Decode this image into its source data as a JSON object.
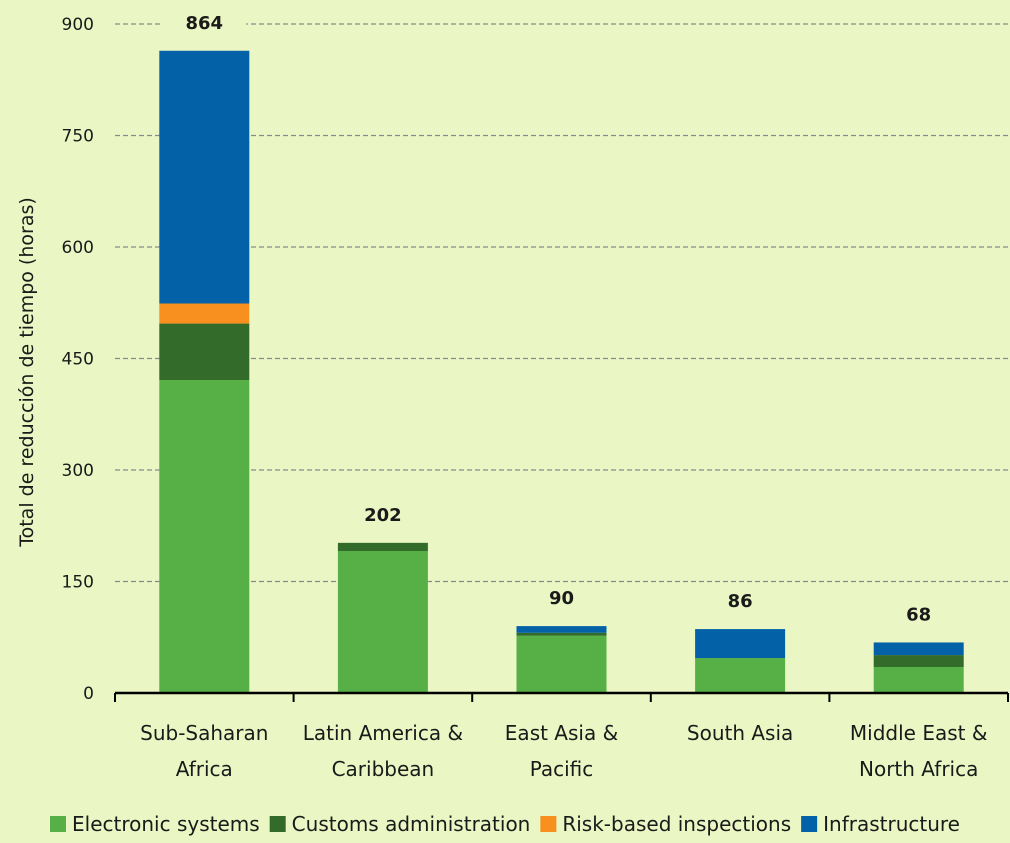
{
  "chart_data": {
    "type": "bar",
    "stacked": true,
    "title": "",
    "xlabel": "",
    "ylabel": "Total de reducción de tiempo (horas)",
    "ylim": [
      0,
      900
    ],
    "yticks": [
      0,
      150,
      300,
      450,
      600,
      750,
      900
    ],
    "grid": "horizontal-dashed",
    "legend_position": "bottom",
    "categories": [
      [
        "Sub-Saharan",
        "Africa"
      ],
      [
        "Latin America &",
        "Caribbean"
      ],
      [
        "East Asia &",
        "Pacific"
      ],
      [
        "South Asia"
      ],
      [
        "Middle East &",
        "North Africa"
      ]
    ],
    "totals": [
      864,
      202,
      90,
      86,
      68
    ],
    "series": [
      {
        "name": "Electronic systems",
        "color": "#57b045",
        "values": [
          421,
          191,
          77,
          47,
          35
        ]
      },
      {
        "name": "Customs administration",
        "color": "#326b2a",
        "values": [
          76,
          11,
          4,
          0,
          16
        ]
      },
      {
        "name": "Risk-based inspections",
        "color": "#f7901e",
        "values": [
          27,
          0,
          0,
          0,
          0
        ]
      },
      {
        "name": "Infrastructure",
        "color": "#0361a8",
        "values": [
          340,
          0,
          9,
          39,
          17
        ]
      }
    ]
  }
}
